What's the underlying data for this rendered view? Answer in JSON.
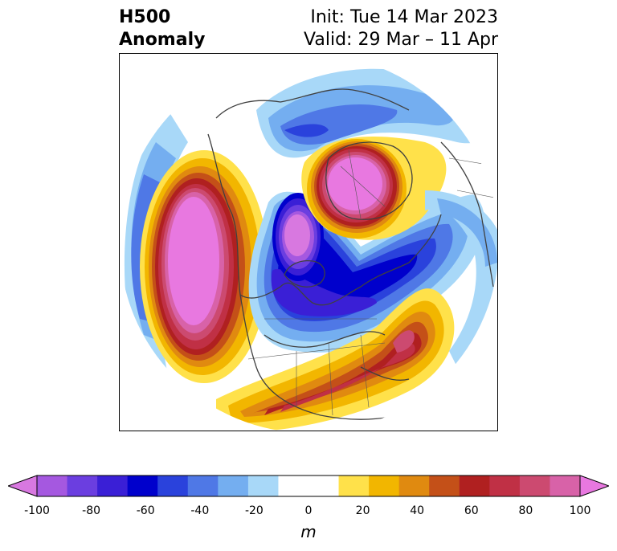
{
  "title": {
    "line1_left": "H500",
    "line2_left": "Anomaly",
    "line1_right": "Init: Tue 14 Mar 2023",
    "line2_right": "Valid: 29 Mar – 11 Apr"
  },
  "colorbar": {
    "unit": "m",
    "ticks": [
      "-100",
      "-80",
      "-60",
      "-40",
      "-20",
      "0",
      "20",
      "40",
      "60",
      "80",
      "100"
    ],
    "colors": [
      "#d878e0",
      "#a558e0",
      "#6b3ee0",
      "#3a1fd6",
      "#0000cc",
      "#2a42dc",
      "#4f78e6",
      "#74aef0",
      "#a8d8f8",
      "#ffffff",
      "#ffffff",
      "#ffe14a",
      "#f2b600",
      "#e08a10",
      "#c45018",
      "#b02020",
      "#c03045",
      "#cc4a70",
      "#d862a8",
      "#e878e0"
    ]
  }
}
